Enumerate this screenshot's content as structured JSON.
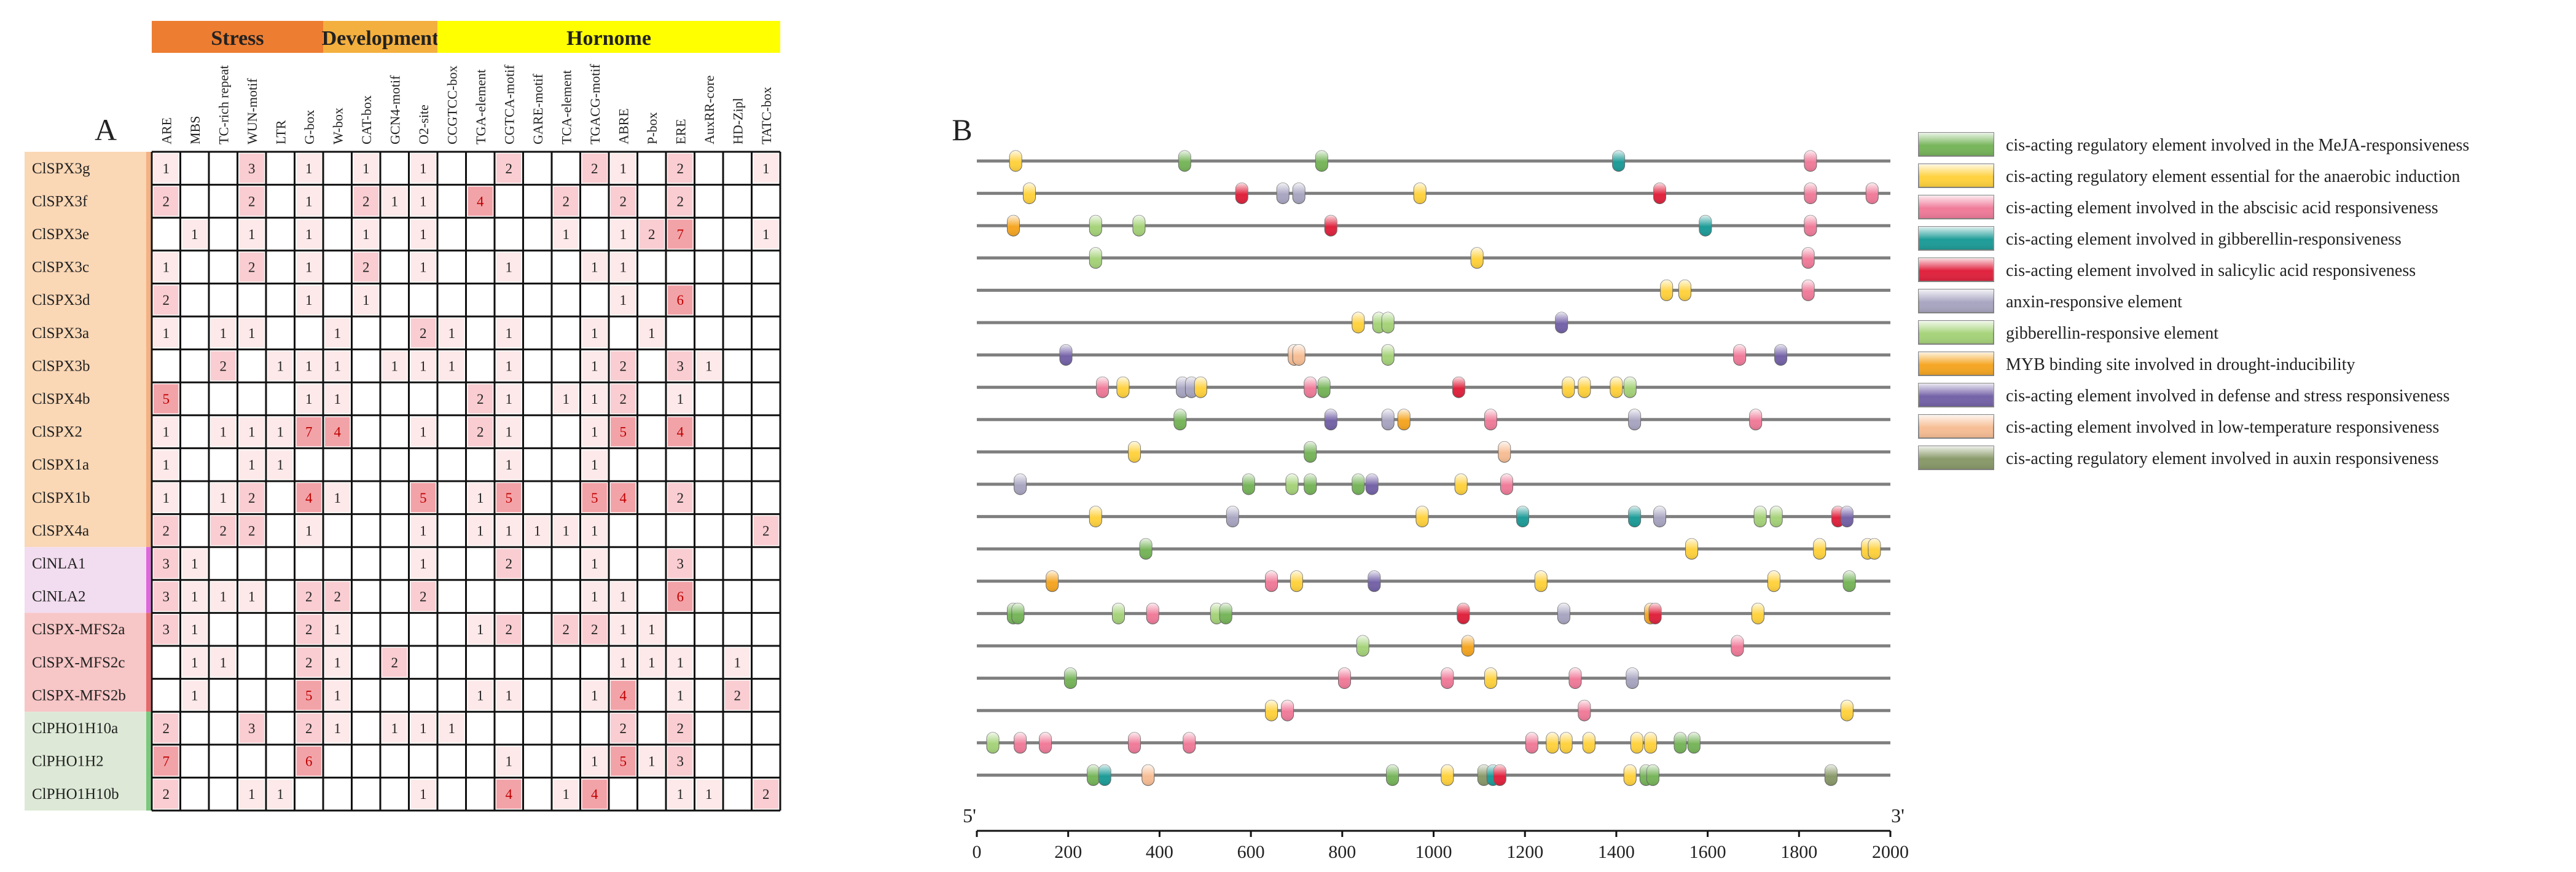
{
  "panel_a_label": "A",
  "panel_b_label": "B",
  "heatmap": {
    "groups": [
      {
        "label": "Stress",
        "color": "#ED7D31",
        "first_col": 0,
        "last_col": 5
      },
      {
        "label": "Development",
        "color": "#F4B03E",
        "first_col": 6,
        "last_col": 9
      },
      {
        "label": "Hornome",
        "color": "#FFFF00",
        "first_col": 10,
        "last_col": 21
      }
    ],
    "columns": [
      "ARE",
      "MBS",
      "TC-rich repeat",
      "WUN-motif",
      "LTR",
      "G-box",
      "W-box",
      "CAT-box",
      "GCN4-motif",
      "O2-site",
      "CCGTCC-box",
      "TGA-element",
      "CGTCA-motif",
      "GARE-motif",
      "TCA-element",
      "TGACG-motif",
      "ABRE",
      "P-box",
      "ERE",
      "AuxRR-core",
      "HD-Zipl",
      "TATC-box"
    ],
    "rows": [
      "ClSPX3g",
      "ClSPX3f",
      "ClSPX3e",
      "ClSPX3c",
      "ClSPX3d",
      "ClSPX3a",
      "ClSPX3b",
      "ClSPX4b",
      "ClSPX2",
      "ClSPX1a",
      "ClSPX1b",
      "ClSPX4a",
      "ClNLA1",
      "ClNLA2",
      "ClSPX-MFS2a",
      "ClSPX-MFS2c",
      "ClSPX-MFS2b",
      "ClPHO1H10a",
      "ClPHO1H2",
      "ClPHO1H10b"
    ],
    "row_groups": [
      {
        "first_row": 0,
        "last_row": 11,
        "color": "#FAD7B5",
        "bar": "#F4B183"
      },
      {
        "first_row": 12,
        "last_row": 13,
        "color": "#F2DCEF",
        "bar": "#E066DD"
      },
      {
        "first_row": 14,
        "last_row": 16,
        "color": "#F7C6C6",
        "bar": "#E76A6A"
      },
      {
        "first_row": 17,
        "last_row": 19,
        "color": "#DDE9D6",
        "bar": "#79C97C"
      }
    ],
    "values": [
      [
        1,
        null,
        null,
        3,
        null,
        1,
        null,
        1,
        null,
        1,
        null,
        null,
        2,
        null,
        null,
        2,
        1,
        null,
        2,
        null,
        null,
        1
      ],
      [
        2,
        null,
        null,
        2,
        null,
        1,
        null,
        2,
        1,
        1,
        null,
        4,
        null,
        null,
        2,
        null,
        2,
        null,
        2,
        null,
        null,
        null
      ],
      [
        null,
        1,
        null,
        1,
        null,
        1,
        null,
        1,
        null,
        1,
        null,
        null,
        null,
        null,
        1,
        null,
        1,
        2,
        7,
        null,
        null,
        1
      ],
      [
        1,
        null,
        null,
        2,
        null,
        1,
        null,
        2,
        null,
        1,
        null,
        null,
        1,
        null,
        null,
        1,
        1,
        null,
        null,
        null,
        null,
        null
      ],
      [
        2,
        null,
        null,
        null,
        null,
        1,
        null,
        1,
        null,
        null,
        null,
        null,
        null,
        null,
        null,
        null,
        1,
        null,
        6,
        null,
        null,
        null
      ],
      [
        1,
        null,
        1,
        1,
        null,
        null,
        1,
        null,
        null,
        2,
        1,
        null,
        1,
        null,
        null,
        1,
        null,
        1,
        null,
        null,
        null,
        null
      ],
      [
        null,
        null,
        2,
        null,
        1,
        1,
        1,
        null,
        1,
        1,
        1,
        null,
        1,
        null,
        null,
        1,
        2,
        null,
        3,
        1,
        null,
        null
      ],
      [
        5,
        null,
        null,
        null,
        null,
        1,
        1,
        null,
        null,
        null,
        null,
        2,
        1,
        null,
        1,
        1,
        2,
        null,
        1,
        null,
        null,
        null
      ],
      [
        1,
        null,
        1,
        1,
        1,
        7,
        4,
        null,
        null,
        1,
        null,
        2,
        1,
        null,
        null,
        1,
        5,
        null,
        4,
        null,
        null,
        null
      ],
      [
        1,
        null,
        null,
        1,
        1,
        null,
        null,
        null,
        null,
        null,
        null,
        null,
        1,
        null,
        null,
        1,
        null,
        null,
        null,
        null,
        null,
        null
      ],
      [
        1,
        null,
        1,
        2,
        null,
        4,
        1,
        null,
        null,
        5,
        null,
        1,
        5,
        null,
        null,
        5,
        4,
        null,
        2,
        null,
        null,
        null
      ],
      [
        2,
        null,
        2,
        2,
        null,
        1,
        null,
        null,
        null,
        1,
        null,
        1,
        1,
        1,
        1,
        1,
        null,
        null,
        null,
        null,
        null,
        2
      ],
      [
        3,
        1,
        null,
        null,
        null,
        null,
        null,
        null,
        null,
        1,
        null,
        null,
        2,
        null,
        null,
        1,
        null,
        null,
        3,
        null,
        null,
        null
      ],
      [
        3,
        1,
        1,
        1,
        null,
        2,
        2,
        null,
        null,
        2,
        null,
        null,
        null,
        null,
        null,
        1,
        1,
        null,
        6,
        null,
        null,
        null
      ],
      [
        3,
        1,
        null,
        null,
        null,
        2,
        1,
        null,
        null,
        null,
        null,
        1,
        2,
        null,
        2,
        2,
        1,
        1,
        null,
        null,
        null,
        null
      ],
      [
        null,
        1,
        1,
        null,
        null,
        2,
        1,
        null,
        2,
        null,
        null,
        null,
        null,
        null,
        null,
        null,
        1,
        1,
        1,
        null,
        1,
        null
      ],
      [
        null,
        1,
        null,
        null,
        null,
        5,
        1,
        null,
        null,
        null,
        null,
        1,
        1,
        null,
        null,
        1,
        4,
        null,
        1,
        null,
        2,
        null
      ],
      [
        2,
        null,
        null,
        3,
        null,
        2,
        1,
        null,
        1,
        1,
        1,
        null,
        null,
        null,
        null,
        null,
        2,
        null,
        2,
        null,
        null,
        null
      ],
      [
        7,
        null,
        null,
        null,
        null,
        6,
        null,
        null,
        null,
        null,
        null,
        null,
        1,
        null,
        null,
        1,
        5,
        1,
        3,
        null,
        null,
        null
      ],
      [
        2,
        null,
        null,
        1,
        1,
        null,
        null,
        null,
        null,
        1,
        null,
        null,
        4,
        null,
        1,
        4,
        null,
        null,
        1,
        1,
        null,
        2
      ]
    ],
    "shade_colors": {
      "low": "#FDE9E9",
      "mid": "#F9CDD1",
      "high": "#F2A3A8",
      "text": "#C00000"
    }
  },
  "chart_data": {
    "type": "scatter",
    "xlabel": "",
    "ylabel": "",
    "xlim": [
      0,
      2000
    ],
    "xticks": [
      0,
      200,
      400,
      600,
      800,
      1000,
      1200,
      1400,
      1600,
      1800,
      2000
    ],
    "start_label": "5'",
    "end_label": "3'",
    "legend_position": "right",
    "series": [
      {
        "name": "cis-acting regulatory element involved in the MeJA-responsiveness",
        "color": "#77B55A"
      },
      {
        "name": "cis-acting regulatory element essential for the anaerobic induction",
        "color": "#FFD23F"
      },
      {
        "name": "cis-acting element involved in the abscisic acid responsiveness",
        "color": "#F07C9A"
      },
      {
        "name": "cis-acting element involved in gibberellin-responsiveness",
        "color": "#1E9C98"
      },
      {
        "name": "cis-acting element involved in salicylic acid responsiveness",
        "color": "#E0233E"
      },
      {
        "name": "anxin-responsive element",
        "color": "#A9A6C2"
      },
      {
        "name": "gibberellin-responsive element",
        "color": "#A6D37A"
      },
      {
        "name": "MYB binding site involved in drought-inducibility",
        "color": "#F5A623"
      },
      {
        "name": "cis-acting element involved in defense and stress responsiveness",
        "color": "#7563A8"
      },
      {
        "name": "cis-acting element involved in low-temperature responsiveness",
        "color": "#F7BE95"
      },
      {
        "name": "cis-acting regulatory element involved in auxin responsiveness",
        "color": "#8A9A6A"
      }
    ],
    "tracks": [
      [
        [
          85,
          1
        ],
        [
          455,
          0
        ],
        [
          755,
          0
        ],
        [
          1405,
          3
        ],
        [
          1825,
          2
        ]
      ],
      [
        [
          115,
          1
        ],
        [
          580,
          4
        ],
        [
          670,
          5
        ],
        [
          705,
          5
        ],
        [
          970,
          1
        ],
        [
          1495,
          4
        ],
        [
          1825,
          2
        ],
        [
          1960,
          2
        ]
      ],
      [
        [
          80,
          7
        ],
        [
          260,
          6
        ],
        [
          355,
          6
        ],
        [
          775,
          4
        ],
        [
          1595,
          3
        ],
        [
          1825,
          2
        ]
      ],
      [
        [
          260,
          6
        ],
        [
          1095,
          1
        ],
        [
          1820,
          2
        ]
      ],
      [
        [
          1510,
          1
        ],
        [
          1550,
          1
        ],
        [
          1820,
          2
        ]
      ],
      [
        [
          835,
          1
        ],
        [
          880,
          6
        ],
        [
          900,
          6
        ],
        [
          1280,
          8
        ]
      ],
      [
        [
          195,
          8
        ],
        [
          695,
          9
        ],
        [
          705,
          9
        ],
        [
          900,
          6
        ],
        [
          1670,
          2
        ],
        [
          1760,
          8
        ]
      ],
      [
        [
          275,
          2
        ],
        [
          320,
          1
        ],
        [
          450,
          5
        ],
        [
          470,
          5
        ],
        [
          490,
          1
        ],
        [
          730,
          2
        ],
        [
          760,
          0
        ],
        [
          1055,
          4
        ],
        [
          1295,
          1
        ],
        [
          1330,
          1
        ],
        [
          1400,
          1
        ],
        [
          1430,
          6
        ]
      ],
      [
        [
          445,
          0
        ],
        [
          775,
          8
        ],
        [
          900,
          5
        ],
        [
          935,
          7
        ],
        [
          1125,
          2
        ],
        [
          1440,
          5
        ],
        [
          1705,
          2
        ]
      ],
      [
        [
          345,
          1
        ],
        [
          730,
          0
        ],
        [
          1155,
          9
        ]
      ],
      [
        [
          95,
          5
        ],
        [
          595,
          0
        ],
        [
          690,
          6
        ],
        [
          730,
          0
        ],
        [
          835,
          0
        ],
        [
          865,
          8
        ],
        [
          1060,
          1
        ],
        [
          1160,
          2
        ]
      ],
      [
        [
          260,
          1
        ],
        [
          560,
          5
        ],
        [
          975,
          1
        ],
        [
          1195,
          3
        ],
        [
          1440,
          3
        ],
        [
          1495,
          5
        ],
        [
          1715,
          6
        ],
        [
          1750,
          6
        ],
        [
          1885,
          4
        ],
        [
          1905,
          8
        ]
      ],
      [
        [
          370,
          0
        ],
        [
          1565,
          1
        ],
        [
          1845,
          1
        ],
        [
          1950,
          1
        ],
        [
          1965,
          1
        ]
      ],
      [
        [
          165,
          7
        ],
        [
          645,
          2
        ],
        [
          700,
          1
        ],
        [
          870,
          8
        ],
        [
          1235,
          1
        ],
        [
          1745,
          1
        ],
        [
          1910,
          0
        ]
      ],
      [
        [
          80,
          0
        ],
        [
          90,
          0
        ],
        [
          310,
          6
        ],
        [
          385,
          2
        ],
        [
          525,
          6
        ],
        [
          545,
          0
        ],
        [
          1065,
          4
        ],
        [
          1285,
          5
        ],
        [
          1475,
          7
        ],
        [
          1485,
          4
        ],
        [
          1710,
          1
        ]
      ],
      [
        [
          845,
          6
        ],
        [
          1075,
          7
        ],
        [
          1665,
          2
        ]
      ],
      [
        [
          205,
          0
        ],
        [
          805,
          2
        ],
        [
          1030,
          2
        ],
        [
          1125,
          1
        ],
        [
          1310,
          2
        ],
        [
          1435,
          5
        ]
      ],
      [
        [
          645,
          1
        ],
        [
          680,
          2
        ],
        [
          1330,
          2
        ],
        [
          1905,
          1
        ]
      ],
      [
        [
          35,
          6
        ],
        [
          95,
          2
        ],
        [
          150,
          2
        ],
        [
          345,
          2
        ],
        [
          465,
          2
        ],
        [
          1215,
          2
        ],
        [
          1260,
          1
        ],
        [
          1290,
          1
        ],
        [
          1340,
          1
        ],
        [
          1445,
          1
        ],
        [
          1475,
          1
        ],
        [
          1540,
          0
        ],
        [
          1570,
          0
        ]
      ],
      [
        [
          255,
          0
        ],
        [
          280,
          3
        ],
        [
          375,
          9
        ],
        [
          910,
          0
        ],
        [
          1030,
          1
        ],
        [
          1110,
          10
        ],
        [
          1130,
          3
        ],
        [
          1145,
          4
        ],
        [
          1430,
          1
        ],
        [
          1465,
          0
        ],
        [
          1480,
          0
        ],
        [
          1870,
          10
        ]
      ]
    ]
  }
}
